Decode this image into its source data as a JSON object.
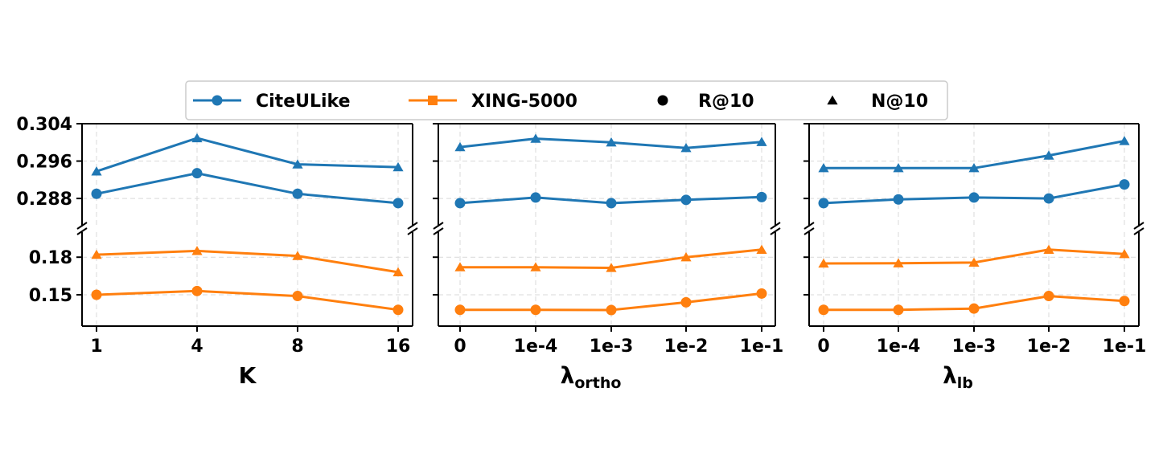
{
  "colors": {
    "CiteULike": "#1f77b4",
    "XING-5000": "#ff7f0e"
  },
  "legend": [
    {
      "label": "CiteULike",
      "kind": "series-line",
      "marker": "circle",
      "color": "#1f77b4"
    },
    {
      "label": "XING-5000",
      "kind": "series-line",
      "marker": "square",
      "color": "#ff7f0e"
    },
    {
      "label": "R@10",
      "kind": "marker-only",
      "marker": "circle",
      "color": "#000000"
    },
    {
      "label": "N@10",
      "kind": "marker-only",
      "marker": "triangle",
      "color": "#000000"
    }
  ],
  "chart_data": [
    {
      "type": "line",
      "xlabel": "K",
      "xlabel_sub": "",
      "categories": [
        "1",
        "4",
        "8",
        "16"
      ],
      "broken_y_axis": true,
      "upper": {
        "ylim": [
          0.282,
          0.304
        ],
        "yticks": [
          0.288,
          0.296,
          0.304
        ],
        "ytick_labels": [
          "0.288",
          "0.296",
          "0.304"
        ],
        "series": [
          {
            "dataset": "CiteULike",
            "metric": "N@10",
            "marker": "triangle",
            "values": [
              0.2938,
              0.3009,
              0.2953,
              0.2947
            ]
          },
          {
            "dataset": "CiteULike",
            "metric": "R@10",
            "marker": "circle",
            "values": [
              0.289,
              0.2934,
              0.289,
              0.287
            ]
          }
        ]
      },
      "lower": {
        "ylim": [
          0.125,
          0.2
        ],
        "yticks": [
          0.15,
          0.18
        ],
        "ytick_labels": [
          "0.15",
          "0.18"
        ],
        "series": [
          {
            "dataset": "XING-5000",
            "metric": "N@10",
            "marker": "triangle",
            "values": [
              0.182,
              0.185,
              0.181,
              0.168
            ]
          },
          {
            "dataset": "XING-5000",
            "metric": "R@10",
            "marker": "circle",
            "values": [
              0.15,
              0.153,
              0.149,
              0.138
            ]
          }
        ]
      },
      "grid": true
    },
    {
      "type": "line",
      "xlabel": "λ",
      "xlabel_sub": "ortho",
      "categories": [
        "0",
        "1e-4",
        "1e-3",
        "1e-2",
        "1e-1"
      ],
      "broken_y_axis": true,
      "upper": {
        "ylim": [
          0.282,
          0.304
        ],
        "yticks": [
          0.288,
          0.296,
          0.304
        ],
        "ytick_labels": [
          "",
          "",
          ""
        ],
        "series": [
          {
            "dataset": "CiteULike",
            "metric": "N@10",
            "marker": "triangle",
            "values": [
              0.299,
              0.3008,
              0.3,
              0.2988,
              0.3001
            ]
          },
          {
            "dataset": "CiteULike",
            "metric": "R@10",
            "marker": "circle",
            "values": [
              0.287,
              0.2882,
              0.287,
              0.2877,
              0.2883
            ]
          }
        ]
      },
      "lower": {
        "ylim": [
          0.125,
          0.2
        ],
        "yticks": [
          0.15,
          0.18
        ],
        "ytick_labels": [
          "",
          ""
        ],
        "series": [
          {
            "dataset": "XING-5000",
            "metric": "N@10",
            "marker": "triangle",
            "values": [
              0.172,
              0.172,
              0.1715,
              0.18,
              0.186
            ]
          },
          {
            "dataset": "XING-5000",
            "metric": "R@10",
            "marker": "circle",
            "values": [
              0.138,
              0.138,
              0.1378,
              0.144,
              0.151
            ]
          }
        ]
      },
      "grid": true
    },
    {
      "type": "line",
      "xlabel": "λ",
      "xlabel_sub": "lb",
      "categories": [
        "0",
        "1e-4",
        "1e-3",
        "1e-2",
        "1e-1"
      ],
      "broken_y_axis": true,
      "upper": {
        "ylim": [
          0.282,
          0.304
        ],
        "yticks": [
          0.288,
          0.296,
          0.304
        ],
        "ytick_labels": [
          "",
          "",
          ""
        ],
        "series": [
          {
            "dataset": "CiteULike",
            "metric": "N@10",
            "marker": "triangle",
            "values": [
              0.2945,
              0.2945,
              0.2945,
              0.2972,
              0.3003
            ]
          },
          {
            "dataset": "CiteULike",
            "metric": "R@10",
            "marker": "circle",
            "values": [
              0.287,
              0.2878,
              0.2882,
              0.288,
              0.291
            ]
          }
        ]
      },
      "lower": {
        "ylim": [
          0.125,
          0.2
        ],
        "yticks": [
          0.15,
          0.18
        ],
        "ytick_labels": [
          "",
          ""
        ],
        "series": [
          {
            "dataset": "XING-5000",
            "metric": "N@10",
            "marker": "triangle",
            "values": [
              0.175,
              0.1752,
              0.1757,
              0.186,
              0.1825
            ]
          },
          {
            "dataset": "XING-5000",
            "metric": "R@10",
            "marker": "circle",
            "values": [
              0.138,
              0.138,
              0.139,
              0.149,
              0.145
            ]
          }
        ]
      },
      "grid": true
    }
  ]
}
